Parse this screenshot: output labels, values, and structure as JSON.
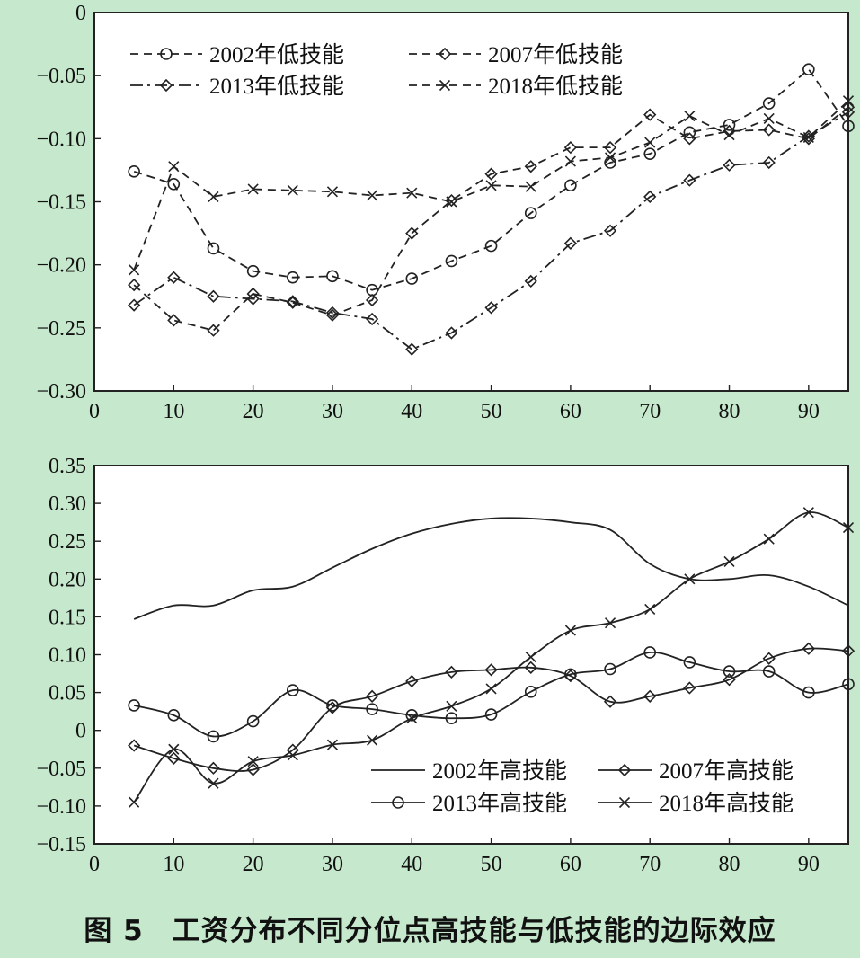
{
  "figure": {
    "caption": "图 5　工资分布不同分位点高技能与低技能的边际效应"
  },
  "chart_data": [
    {
      "type": "line",
      "xlim": [
        0,
        95
      ],
      "ylim": [
        -0.3,
        0
      ],
      "x_ticks": [
        "0",
        "10",
        "20",
        "30",
        "40",
        "50",
        "60",
        "70",
        "80",
        "90"
      ],
      "y_ticks": [
        "0",
        "−0.05",
        "−0.10",
        "−0.15",
        "−0.20",
        "−0.25",
        "−0.30"
      ],
      "legend_position": "top-left",
      "x": [
        5,
        10,
        15,
        20,
        25,
        30,
        35,
        40,
        45,
        50,
        55,
        60,
        65,
        70,
        75,
        80,
        85,
        90,
        95
      ],
      "series": [
        {
          "name": "2002年低技能",
          "style": "dashed",
          "marker": "circle",
          "values": [
            -0.126,
            -0.136,
            -0.187,
            -0.205,
            -0.21,
            -0.209,
            -0.22,
            -0.211,
            -0.197,
            -0.185,
            -0.159,
            -0.137,
            -0.119,
            -0.112,
            -0.095,
            -0.089,
            -0.072,
            -0.045,
            -0.09
          ]
        },
        {
          "name": "2007年低技能",
          "style": "dashed",
          "marker": "diamond",
          "values": [
            -0.216,
            -0.244,
            -0.252,
            -0.223,
            -0.23,
            -0.24,
            -0.228,
            -0.175,
            -0.149,
            -0.128,
            -0.122,
            -0.107,
            -0.107,
            -0.081,
            -0.1,
            -0.094,
            -0.093,
            -0.1,
            -0.075
          ]
        },
        {
          "name": "2013年低技能",
          "style": "dashdot",
          "marker": "diamond",
          "values": [
            -0.232,
            -0.21,
            -0.225,
            -0.227,
            -0.229,
            -0.238,
            -0.243,
            -0.267,
            -0.254,
            -0.234,
            -0.213,
            -0.183,
            -0.173,
            -0.146,
            -0.133,
            -0.121,
            -0.119,
            -0.098,
            -0.079
          ]
        },
        {
          "name": "2018年低技能",
          "style": "dashed",
          "marker": "x",
          "values": [
            -0.204,
            -0.122,
            -0.146,
            -0.14,
            -0.141,
            -0.142,
            -0.145,
            -0.143,
            -0.15,
            -0.137,
            -0.138,
            -0.118,
            -0.115,
            -0.103,
            -0.082,
            -0.097,
            -0.084,
            -0.099,
            -0.07
          ]
        }
      ]
    },
    {
      "type": "line",
      "xlim": [
        0,
        95
      ],
      "ylim": [
        -0.15,
        0.35
      ],
      "x_ticks": [
        "0",
        "10",
        "20",
        "30",
        "40",
        "50",
        "60",
        "70",
        "80",
        "90"
      ],
      "y_ticks": [
        "0.35",
        "0.30",
        "0.25",
        "0.20",
        "0.15",
        "0.10",
        "0.05",
        "0",
        "−0.05",
        "−0.10",
        "−0.15"
      ],
      "legend_position": "bottom-right",
      "x": [
        5,
        10,
        15,
        20,
        25,
        30,
        35,
        40,
        45,
        50,
        55,
        60,
        65,
        70,
        75,
        80,
        85,
        90,
        95
      ],
      "series": [
        {
          "name": "2002年高技能",
          "style": "solid",
          "marker": "none",
          "values": [
            0.147,
            0.165,
            0.165,
            0.185,
            0.19,
            0.215,
            0.24,
            0.26,
            0.273,
            0.28,
            0.28,
            0.275,
            0.265,
            0.22,
            0.2,
            0.2,
            0.205,
            0.19,
            0.165
          ]
        },
        {
          "name": "2007年高技能",
          "style": "solid",
          "marker": "diamond",
          "values": [
            -0.02,
            -0.037,
            -0.05,
            -0.052,
            -0.026,
            0.03,
            0.045,
            0.065,
            0.077,
            0.08,
            0.083,
            0.072,
            0.038,
            0.045,
            0.056,
            0.067,
            0.095,
            0.108,
            0.105
          ]
        },
        {
          "name": "2013年高技能",
          "style": "solid",
          "marker": "circle",
          "values": [
            0.033,
            0.02,
            -0.008,
            0.012,
            0.053,
            0.033,
            0.028,
            0.02,
            0.016,
            0.021,
            0.051,
            0.074,
            0.081,
            0.103,
            0.09,
            0.078,
            0.078,
            0.05,
            0.061
          ]
        },
        {
          "name": "2018年高技能",
          "style": "solid",
          "marker": "x",
          "values": [
            -0.095,
            -0.025,
            -0.07,
            -0.041,
            -0.033,
            -0.019,
            -0.013,
            0.016,
            0.032,
            0.055,
            0.097,
            0.132,
            0.142,
            0.16,
            0.2,
            0.223,
            0.253,
            0.288,
            0.268
          ]
        }
      ]
    }
  ]
}
